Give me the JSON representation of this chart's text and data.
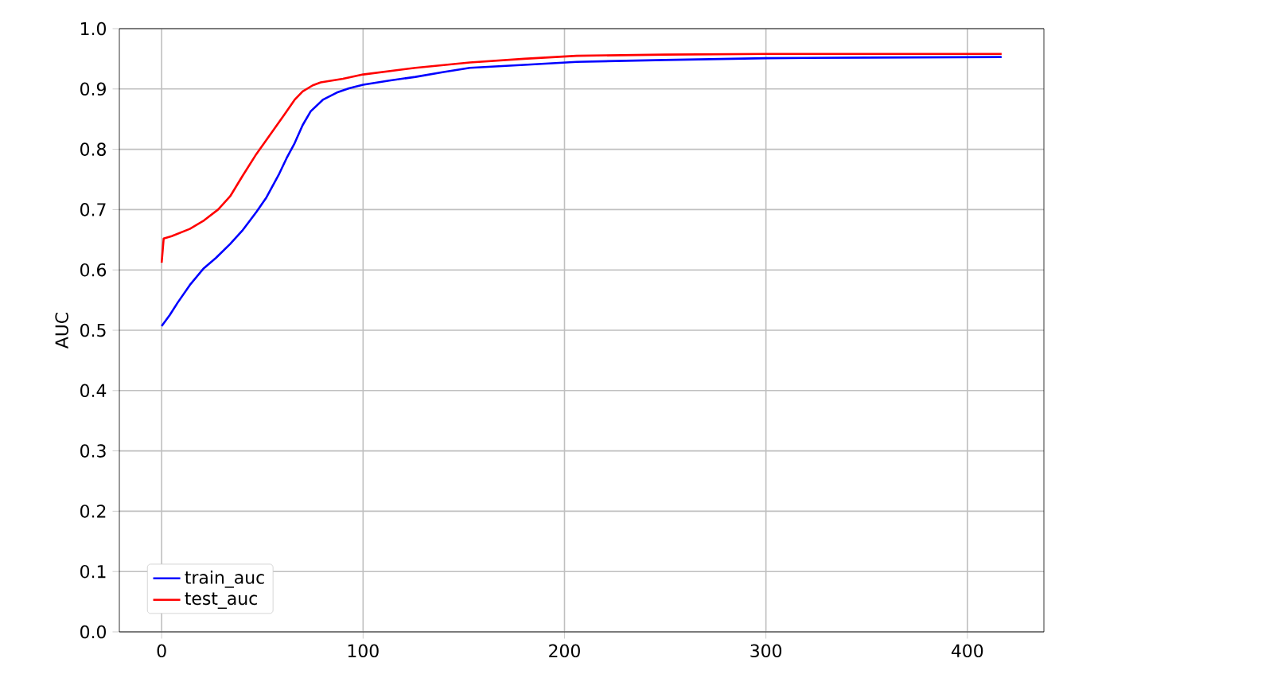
{
  "chart_data": {
    "type": "line",
    "ylabel": "AUC",
    "xlim": [
      -21,
      438
    ],
    "ylim": [
      0,
      1
    ],
    "xticks": [
      0,
      100,
      200,
      300,
      400
    ],
    "yticks": [
      {
        "value": 0,
        "label": "0.0"
      },
      {
        "value": 0.1,
        "label": "0.1"
      },
      {
        "value": 0.2,
        "label": "0.2"
      },
      {
        "value": 0.3,
        "label": "0.3"
      },
      {
        "value": 0.4,
        "label": "0.4"
      },
      {
        "value": 0.5,
        "label": "0.5"
      },
      {
        "value": 0.6,
        "label": "0.6"
      },
      {
        "value": 0.7,
        "label": "0.7"
      },
      {
        "value": 0.8,
        "label": "0.8"
      },
      {
        "value": 0.9,
        "label": "0.9"
      },
      {
        "value": 1,
        "label": "1.0"
      }
    ],
    "grid": true,
    "legend": "bottom left",
    "marker": "none",
    "line_style": "solid",
    "series": [
      {
        "name": "train_auc",
        "color": "#0000ff",
        "x": [
          0,
          4,
          8,
          14,
          21,
          27,
          34,
          40,
          47,
          52,
          58,
          62,
          66,
          70,
          74,
          80,
          87,
          93,
          100,
          113,
          126,
          140,
          153,
          180,
          206,
          250,
          300,
          350,
          417
        ],
        "values": [
          0.507,
          0.525,
          0.546,
          0.575,
          0.603,
          0.62,
          0.643,
          0.665,
          0.696,
          0.72,
          0.757,
          0.785,
          0.81,
          0.84,
          0.863,
          0.882,
          0.894,
          0.901,
          0.907,
          0.914,
          0.92,
          0.928,
          0.935,
          0.94,
          0.945,
          0.948,
          0.951,
          0.952,
          0.953
        ]
      },
      {
        "name": "test_auc",
        "color": "#ff0000",
        "x": [
          0,
          1,
          5,
          14,
          21,
          28,
          34,
          40,
          47,
          54,
          61,
          66,
          70,
          75,
          79,
          90,
          100,
          126,
          153,
          180,
          206,
          250,
          300,
          350,
          417
        ],
        "values": [
          0.612,
          0.652,
          0.656,
          0.668,
          0.682,
          0.7,
          0.722,
          0.755,
          0.792,
          0.825,
          0.858,
          0.882,
          0.896,
          0.906,
          0.911,
          0.917,
          0.924,
          0.935,
          0.944,
          0.95,
          0.955,
          0.957,
          0.958,
          0.958,
          0.958
        ]
      }
    ]
  }
}
